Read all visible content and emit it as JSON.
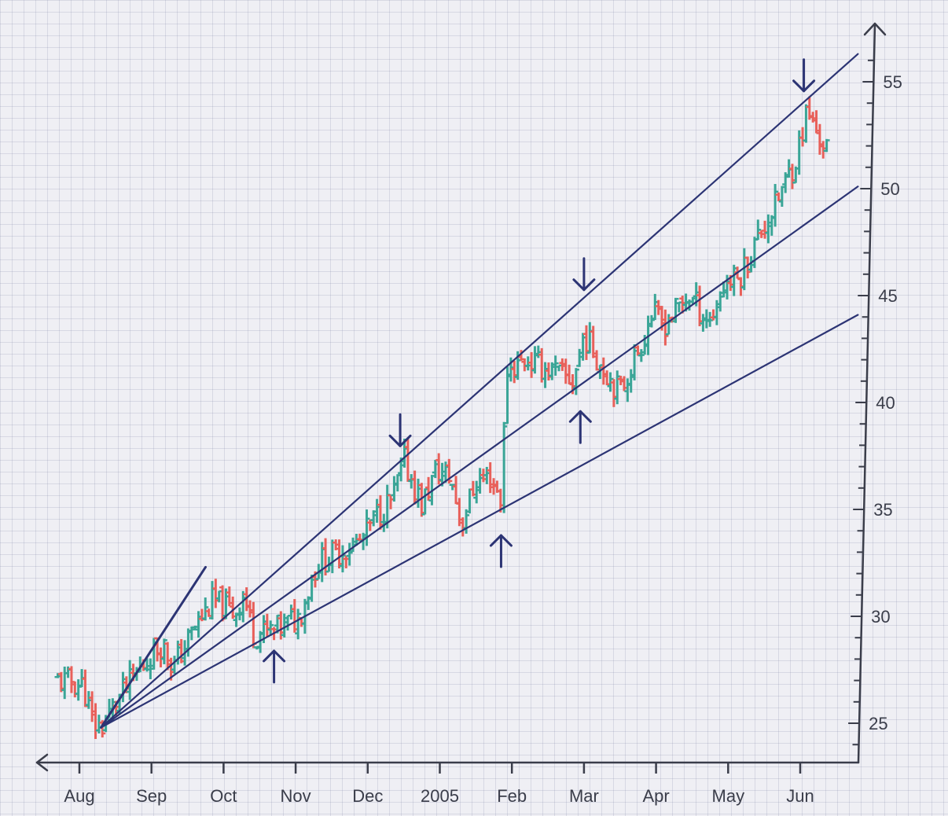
{
  "chart_data": {
    "type": "bar",
    "subtype": "ohlc-with-fan-lines",
    "title": "",
    "xlabel": "",
    "ylabel": "",
    "ylim": [
      23,
      57
    ],
    "x_ticks": [
      "Aug",
      "Sep",
      "Oct",
      "Nov",
      "Dec",
      "2005",
      "Feb",
      "Mar",
      "Apr",
      "May",
      "Jun"
    ],
    "y_ticks": [
      25,
      30,
      35,
      40,
      45,
      50,
      55
    ],
    "x_range_months": [
      -0.3,
      10.8
    ],
    "colors": {
      "up": "#3aa597",
      "down": "#e8605a",
      "lines": "#2c3474",
      "axis": "#3a3d4a"
    },
    "grid": true,
    "anchor_point": {
      "month": 0.3,
      "value": 24.8
    },
    "fan_lines": [
      {
        "to_month": 1.75,
        "to_value": 32.3
      },
      {
        "to_month": 10.8,
        "to_value": 56.3
      },
      {
        "to_month": 10.8,
        "to_value": 50.1
      },
      {
        "to_month": 10.8,
        "to_value": 44.1
      }
    ],
    "arrows_down": [
      {
        "month": 4.45,
        "value": 37.6
      },
      {
        "month": 7.0,
        "value": 44.9
      },
      {
        "month": 10.05,
        "value": 54.2
      }
    ],
    "arrows_up": [
      {
        "month": 2.7,
        "value": 28.9
      },
      {
        "month": 5.85,
        "value": 34.3
      },
      {
        "month": 6.95,
        "value": 40.1
      }
    ],
    "price_path": [
      [
        -0.3,
        27.0
      ],
      [
        0.05,
        26.8
      ],
      [
        0.18,
        25.0
      ],
      [
        0.3,
        24.8
      ],
      [
        0.55,
        26.2
      ],
      [
        0.9,
        27.8
      ],
      [
        1.15,
        28.8
      ],
      [
        1.3,
        27.6
      ],
      [
        1.6,
        29.5
      ],
      [
        1.85,
        30.7
      ],
      [
        2.15,
        30.2
      ],
      [
        2.28,
        31.0
      ],
      [
        2.42,
        29.2
      ],
      [
        2.7,
        29.3
      ],
      [
        3.05,
        30.0
      ],
      [
        3.3,
        32.5
      ],
      [
        3.6,
        33.0
      ],
      [
        3.9,
        33.5
      ],
      [
        4.1,
        34.6
      ],
      [
        4.35,
        35.5
      ],
      [
        4.5,
        37.3
      ],
      [
        4.75,
        35.2
      ],
      [
        4.95,
        36.8
      ],
      [
        5.15,
        36.5
      ],
      [
        5.3,
        34.3
      ],
      [
        5.5,
        36.3
      ],
      [
        5.7,
        36.5
      ],
      [
        5.88,
        35.3
      ],
      [
        5.9,
        41.5
      ],
      [
        6.2,
        42.0
      ],
      [
        6.6,
        41.4
      ],
      [
        6.85,
        41.0
      ],
      [
        7.0,
        43.2
      ],
      [
        7.25,
        41.7
      ],
      [
        7.5,
        40.5
      ],
      [
        7.8,
        42.8
      ],
      [
        7.95,
        44.2
      ],
      [
        8.1,
        43.6
      ],
      [
        8.45,
        45.0
      ],
      [
        8.75,
        43.8
      ],
      [
        8.95,
        45.6
      ],
      [
        9.15,
        45.8
      ],
      [
        9.45,
        48.0
      ],
      [
        9.65,
        49.2
      ],
      [
        9.95,
        51.5
      ],
      [
        10.1,
        53.7
      ],
      [
        10.25,
        52.4
      ],
      [
        10.4,
        51.8
      ]
    ]
  }
}
